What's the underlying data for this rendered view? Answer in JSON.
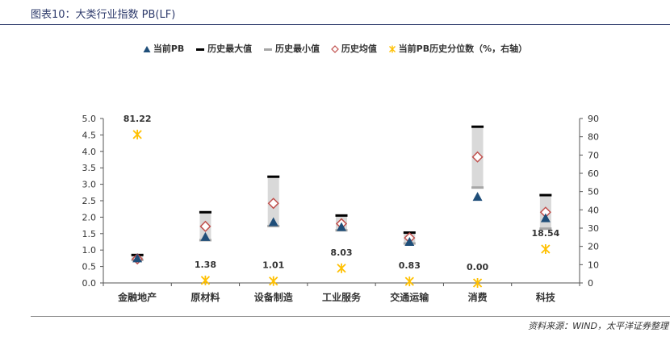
{
  "header": {
    "title": "图表10：大类行业指数 PB(LF)"
  },
  "legend": [
    {
      "name": "当前PB",
      "marker": "triangle",
      "color": "#1f4e79"
    },
    {
      "name": "历史最大值",
      "marker": "dash",
      "color": "#000000"
    },
    {
      "name": "历史最小值",
      "marker": "dash",
      "color": "#a6a6a6"
    },
    {
      "name": "历史均值",
      "marker": "diamond",
      "color": "#c0504d"
    },
    {
      "name": "当前PB历史分位数（%，右轴）",
      "marker": "star",
      "color": "#ffc000"
    }
  ],
  "chart_data": {
    "type": "scatter",
    "categories": [
      "金融地产",
      "原材料",
      "设备制造",
      "工业服务",
      "交通运输",
      "消费",
      "科技"
    ],
    "series": [
      {
        "name": "当前PB",
        "axis": "left",
        "values": [
          0.75,
          1.4,
          1.85,
          1.7,
          1.25,
          2.62,
          1.97
        ]
      },
      {
        "name": "历史最大值",
        "axis": "left",
        "values": [
          0.85,
          2.15,
          3.23,
          2.05,
          1.53,
          4.75,
          2.67
        ]
      },
      {
        "name": "历史最小值",
        "axis": "left",
        "values": [
          0.7,
          1.3,
          1.73,
          1.6,
          1.2,
          2.9,
          1.65
        ]
      },
      {
        "name": "历史均值",
        "axis": "left",
        "values": [
          0.73,
          1.72,
          2.42,
          1.8,
          1.37,
          3.83,
          2.15
        ]
      },
      {
        "name": "当前PB历史分位数（%，右轴）",
        "axis": "right",
        "values": [
          81.22,
          1.38,
          1.01,
          8.03,
          0.83,
          0.0,
          18.54
        ]
      }
    ],
    "percentile_labels": [
      "81.22",
      "1.38",
      "1.01",
      "8.03",
      "0.83",
      "0.00",
      "18.54"
    ],
    "y_left": {
      "min": 0,
      "max": 5,
      "step": 0.5,
      "ticks": [
        "0.0",
        "0.5",
        "1.0",
        "1.5",
        "2.0",
        "2.5",
        "3.0",
        "3.5",
        "4.0",
        "4.5",
        "5.0"
      ]
    },
    "y_right": {
      "min": 0,
      "max": 90,
      "step": 10,
      "ticks": [
        "0",
        "10",
        "20",
        "30",
        "40",
        "50",
        "60",
        "70",
        "80",
        "90"
      ]
    },
    "grid": false,
    "legend_position": "top"
  },
  "footer": {
    "source": "资料来源：WIND，太平洋证券整理"
  }
}
